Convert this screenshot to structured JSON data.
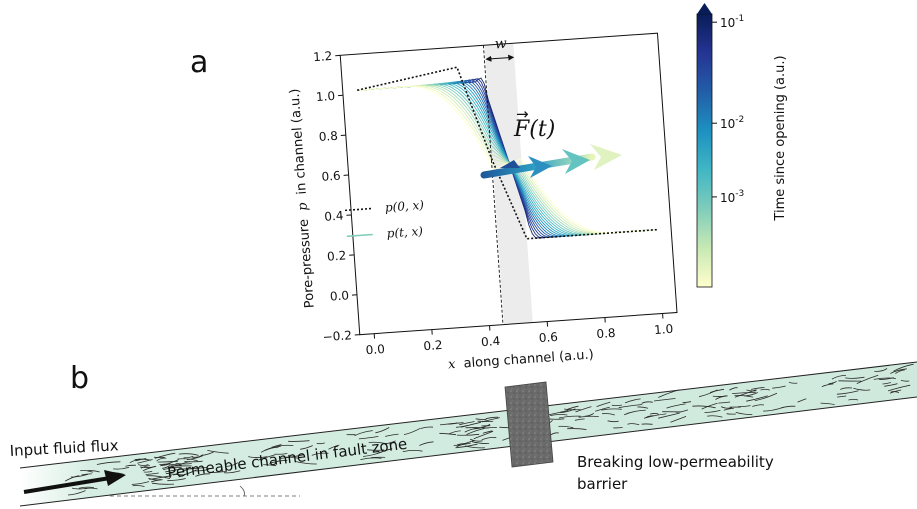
{
  "panel_a": {
    "label": "a",
    "width_symbol": "w",
    "force_label": "F(t)",
    "force_arrow_symbol": "→",
    "legend": {
      "initial": "p(0, x)",
      "evolving": "p(t, x)"
    },
    "colorbar": {
      "title": "Time since opening (a.u.)",
      "ticks": [
        {
          "base": "10",
          "exp": "-1"
        },
        {
          "base": "10",
          "exp": "-2"
        },
        {
          "base": "10",
          "exp": "-3"
        }
      ],
      "colors": [
        "#ffffcc",
        "#c7e9b4",
        "#7fcdbb",
        "#41b6c4",
        "#1d91c0",
        "#225ea8",
        "#253494",
        "#081d58"
      ]
    }
  },
  "chart_data": {
    "type": "line",
    "xlabel_var": "x",
    "xlabel": "along channel (a.u.)",
    "ylabel_prefix": "Pore-pressure",
    "ylabel_var": "p",
    "ylabel_suffix": "in channel (a.u.)",
    "xlim": [
      -0.05,
      1.05
    ],
    "ylim": [
      -0.2,
      1.2
    ],
    "xticks": [
      "0.0",
      "0.2",
      "0.4",
      "0.6",
      "0.8",
      "1.0"
    ],
    "yticks": [
      "−0.2",
      "0.0",
      "0.2",
      "0.4",
      "0.6",
      "0.8",
      "1.0",
      "1.2"
    ],
    "barrier": {
      "x_start": 0.45,
      "x_end": 0.55
    },
    "initial_profile": {
      "x": [
        0.0,
        0.35,
        0.45,
        0.55,
        1.0
      ],
      "p": [
        1.02,
        1.1,
        0.62,
        0.22,
        0.22
      ]
    },
    "curve_count": 18
  },
  "panel_b": {
    "label": "b",
    "input_label": "Input fluid flux",
    "channel_label": "Permeable channel in fault zone",
    "barrier_label_line1": "Breaking low-permeability",
    "barrier_label_line2": "barrier"
  }
}
